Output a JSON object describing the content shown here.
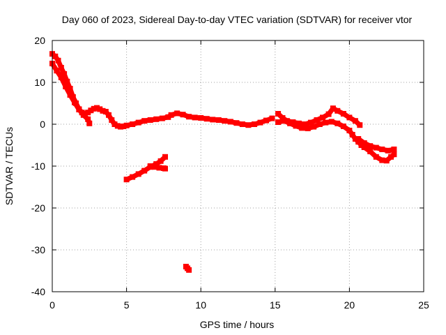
{
  "chart_data": {
    "type": "scatter",
    "title": "Day 060 of 2023, Sidereal Day-to-day VTEC variation (SDTVAR) for receiver vtor",
    "xlabel": "GPS time / hours",
    "ylabel": "SDTVAR / TECUs",
    "xlim": [
      0,
      25
    ],
    "ylim": [
      -40,
      20
    ],
    "xticks": [
      0,
      5,
      10,
      15,
      20,
      25
    ],
    "xtick_labels": [
      "0",
      "5",
      "10",
      "15",
      "20",
      "25"
    ],
    "yticks": [
      -40,
      -30,
      -20,
      -10,
      0,
      10,
      20
    ],
    "ytick_labels": [
      "-40",
      "-30",
      "-20",
      "-10",
      "0",
      "10",
      "20"
    ],
    "grid": true,
    "marker_color": "#ff0000",
    "series": [
      {
        "name": "arc-main-upper",
        "x": [
          0.0,
          0.2,
          0.4,
          0.6,
          0.8,
          1.0,
          1.2,
          1.4,
          1.6,
          1.8,
          2.0,
          2.2,
          2.4,
          2.6,
          2.8,
          3.0,
          3.2,
          3.4,
          3.6,
          3.8,
          4.0,
          4.2,
          4.4,
          4.6,
          4.8,
          5.0,
          5.4,
          5.8,
          6.2,
          6.6,
          7.0,
          7.4,
          7.8,
          8.0,
          8.4,
          8.8,
          9.2,
          9.6,
          10.0,
          10.4,
          10.8,
          11.2,
          11.6,
          12.0,
          12.4,
          12.8,
          13.2,
          13.6,
          14.0,
          14.4,
          14.8
        ],
        "y": [
          16.8,
          16.2,
          15.2,
          13.5,
          12.0,
          10.2,
          8.5,
          6.5,
          5.0,
          3.6,
          2.8,
          2.5,
          2.8,
          3.3,
          3.7,
          3.9,
          3.6,
          3.2,
          3.0,
          2.2,
          1.0,
          0.0,
          -0.4,
          -0.6,
          -0.5,
          -0.3,
          0.0,
          0.4,
          0.8,
          1.0,
          1.2,
          1.4,
          1.7,
          2.2,
          2.6,
          2.3,
          1.8,
          1.6,
          1.5,
          1.3,
          1.1,
          1.0,
          0.8,
          0.6,
          0.3,
          0.0,
          -0.2,
          0.0,
          0.4,
          0.9,
          1.4
        ]
      },
      {
        "name": "arc-main-lower",
        "x": [
          0.0,
          0.3,
          0.6,
          0.9,
          1.2,
          1.5,
          1.8,
          2.1,
          2.4,
          2.5
        ],
        "y": [
          14.5,
          12.8,
          11.2,
          9.0,
          7.0,
          5.2,
          3.5,
          2.2,
          1.2,
          0.2
        ]
      },
      {
        "name": "arc-right-upper",
        "x": [
          15.2,
          15.5,
          15.8,
          16.2,
          16.6,
          17.0,
          17.4,
          17.8,
          18.2,
          18.6,
          18.9,
          19.2,
          19.6,
          20.0,
          20.4,
          20.7
        ],
        "y": [
          2.5,
          1.5,
          0.8,
          0.5,
          0.2,
          0.0,
          0.4,
          1.0,
          1.6,
          2.4,
          3.8,
          3.2,
          2.5,
          1.6,
          0.8,
          -0.2
        ]
      },
      {
        "name": "arc-right-lower",
        "x": [
          15.2,
          15.6,
          16.0,
          16.4,
          16.8,
          17.2,
          17.6,
          18.0,
          18.4,
          18.8,
          19.2,
          19.6,
          20.0,
          20.2,
          20.4,
          20.6,
          20.8,
          21.0,
          21.4,
          21.8,
          22.2,
          22.5,
          22.8,
          23.0
        ],
        "y": [
          0.5,
          0.8,
          0.2,
          -0.4,
          -0.9,
          -1.0,
          -0.6,
          0.0,
          0.4,
          0.6,
          0.2,
          -0.5,
          -1.5,
          -2.5,
          -3.5,
          -4.2,
          -5.0,
          -5.5,
          -6.5,
          -7.8,
          -8.6,
          -8.7,
          -7.8,
          -7.2
        ]
      },
      {
        "name": "arc-right-tail",
        "x": [
          20.6,
          21.0,
          21.4,
          21.8,
          22.2,
          22.6,
          23.0
        ],
        "y": [
          -3.5,
          -4.5,
          -5.2,
          -5.6,
          -6.0,
          -6.3,
          -6.0
        ]
      },
      {
        "name": "arc-side-diagonal",
        "x": [
          5.0,
          5.4,
          5.8,
          6.2,
          6.6,
          7.0,
          7.3,
          7.6
        ],
        "y": [
          -13.2,
          -12.6,
          -11.9,
          -11.1,
          -10.2,
          -9.5,
          -8.8,
          -7.8
        ]
      },
      {
        "name": "arc-side-short",
        "x": [
          6.6,
          6.9,
          7.2,
          7.5,
          7.6
        ],
        "y": [
          -10.0,
          -10.2,
          -10.4,
          -10.5,
          -10.6
        ]
      },
      {
        "name": "arc-outlier",
        "x": [
          9.0,
          9.1,
          9.2
        ],
        "y": [
          -34.0,
          -34.4,
          -34.8
        ]
      }
    ]
  }
}
